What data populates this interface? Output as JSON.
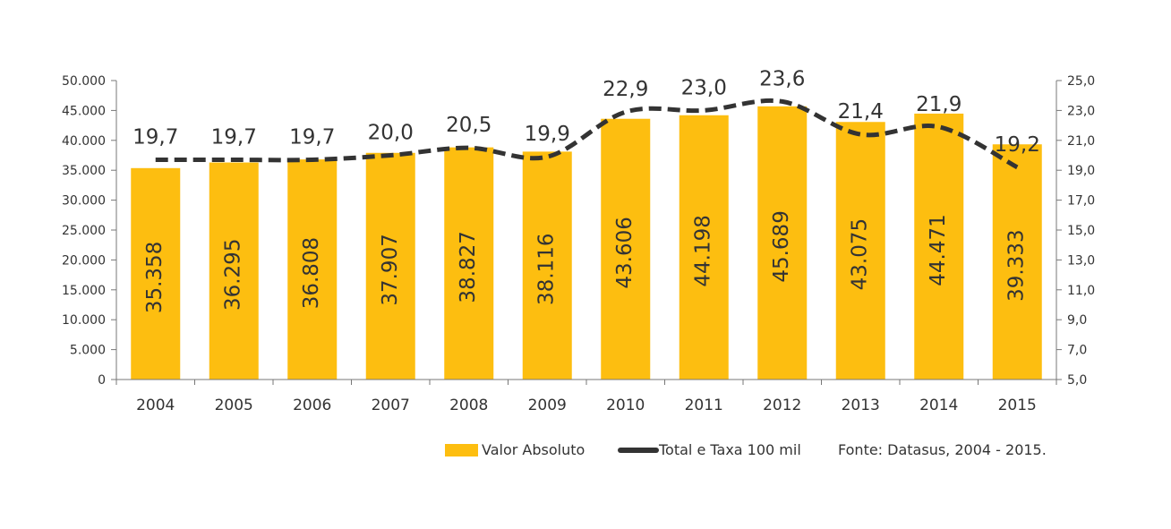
{
  "chart_data": {
    "type": "bar",
    "categories": [
      "2004",
      "2005",
      "2006",
      "2007",
      "2008",
      "2009",
      "2010",
      "2011",
      "2012",
      "2013",
      "2014",
      "2015"
    ],
    "series": [
      {
        "name": "Valor Absoluto",
        "kind": "bar",
        "axis": "left",
        "values": [
          35358,
          36295,
          36808,
          37907,
          38827,
          38116,
          43606,
          44198,
          45689,
          43075,
          44471,
          39333
        ],
        "labels": [
          "35.358",
          "36.295",
          "36.808",
          "37.907",
          "38.827",
          "38.116",
          "43.606",
          "44.198",
          "45.689",
          "43.075",
          "44.471",
          "39.333"
        ]
      },
      {
        "name": "Total e Taxa 100 mil",
        "kind": "line",
        "style": "dashed",
        "axis": "right",
        "values": [
          19.7,
          19.7,
          19.7,
          20.0,
          20.5,
          19.9,
          22.9,
          23.0,
          23.6,
          21.4,
          21.9,
          19.2
        ],
        "labels": [
          "19,7",
          "19,7",
          "19,7",
          "20,0",
          "20,5",
          "19,9",
          "22,9",
          "23,0",
          "23,6",
          "21,4",
          "21,9",
          "19,2"
        ]
      }
    ],
    "y_left": {
      "lim": [
        0,
        50000
      ],
      "ticks": [
        0,
        5000,
        10000,
        15000,
        20000,
        25000,
        30000,
        35000,
        40000,
        45000,
        50000
      ],
      "tick_labels": [
        "0",
        "5.000",
        "10.000",
        "15.000",
        "20.000",
        "25.000",
        "30.000",
        "35.000",
        "40.000",
        "45.000",
        "50.000"
      ]
    },
    "y_right": {
      "lim": [
        5,
        25
      ],
      "ticks": [
        5,
        7,
        9,
        11,
        13,
        15,
        17,
        19,
        21,
        23,
        25
      ],
      "tick_labels": [
        "5,0",
        "7,0",
        "9,0",
        "11,0",
        "13,0",
        "15,0",
        "17,0",
        "19,0",
        "21,0",
        "23,0",
        "25,0"
      ]
    },
    "grid": false,
    "legend_position": "bottom-right",
    "source_note": "Fonte: Datasus, 2004 - 2015.",
    "colors": {
      "bar": "#FDBE10",
      "line": "#333333",
      "text": "#333333",
      "axis": "#777777"
    }
  }
}
